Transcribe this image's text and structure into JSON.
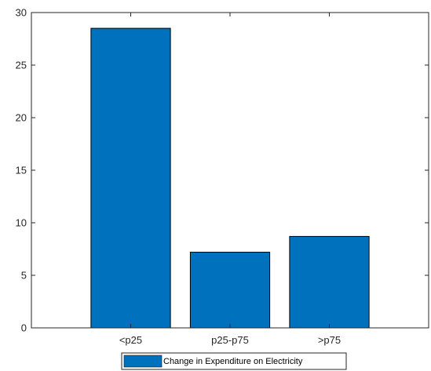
{
  "chart_data": {
    "type": "bar",
    "categories": [
      "<p25",
      "p25-p75",
      ">p75"
    ],
    "series": [
      {
        "name": "Change in Expenditure on Electricity",
        "values": [
          28.5,
          7.2,
          8.7
        ]
      }
    ],
    "xlabel": "",
    "ylabel": "",
    "ylim": [
      0,
      30
    ],
    "xlim": [
      0,
      4
    ],
    "yticks": [
      0,
      5,
      10,
      15,
      20,
      25,
      30
    ],
    "grid": false,
    "legend": "bottom-center",
    "bar_color": "#0072BD",
    "axis_color": "#262626"
  }
}
